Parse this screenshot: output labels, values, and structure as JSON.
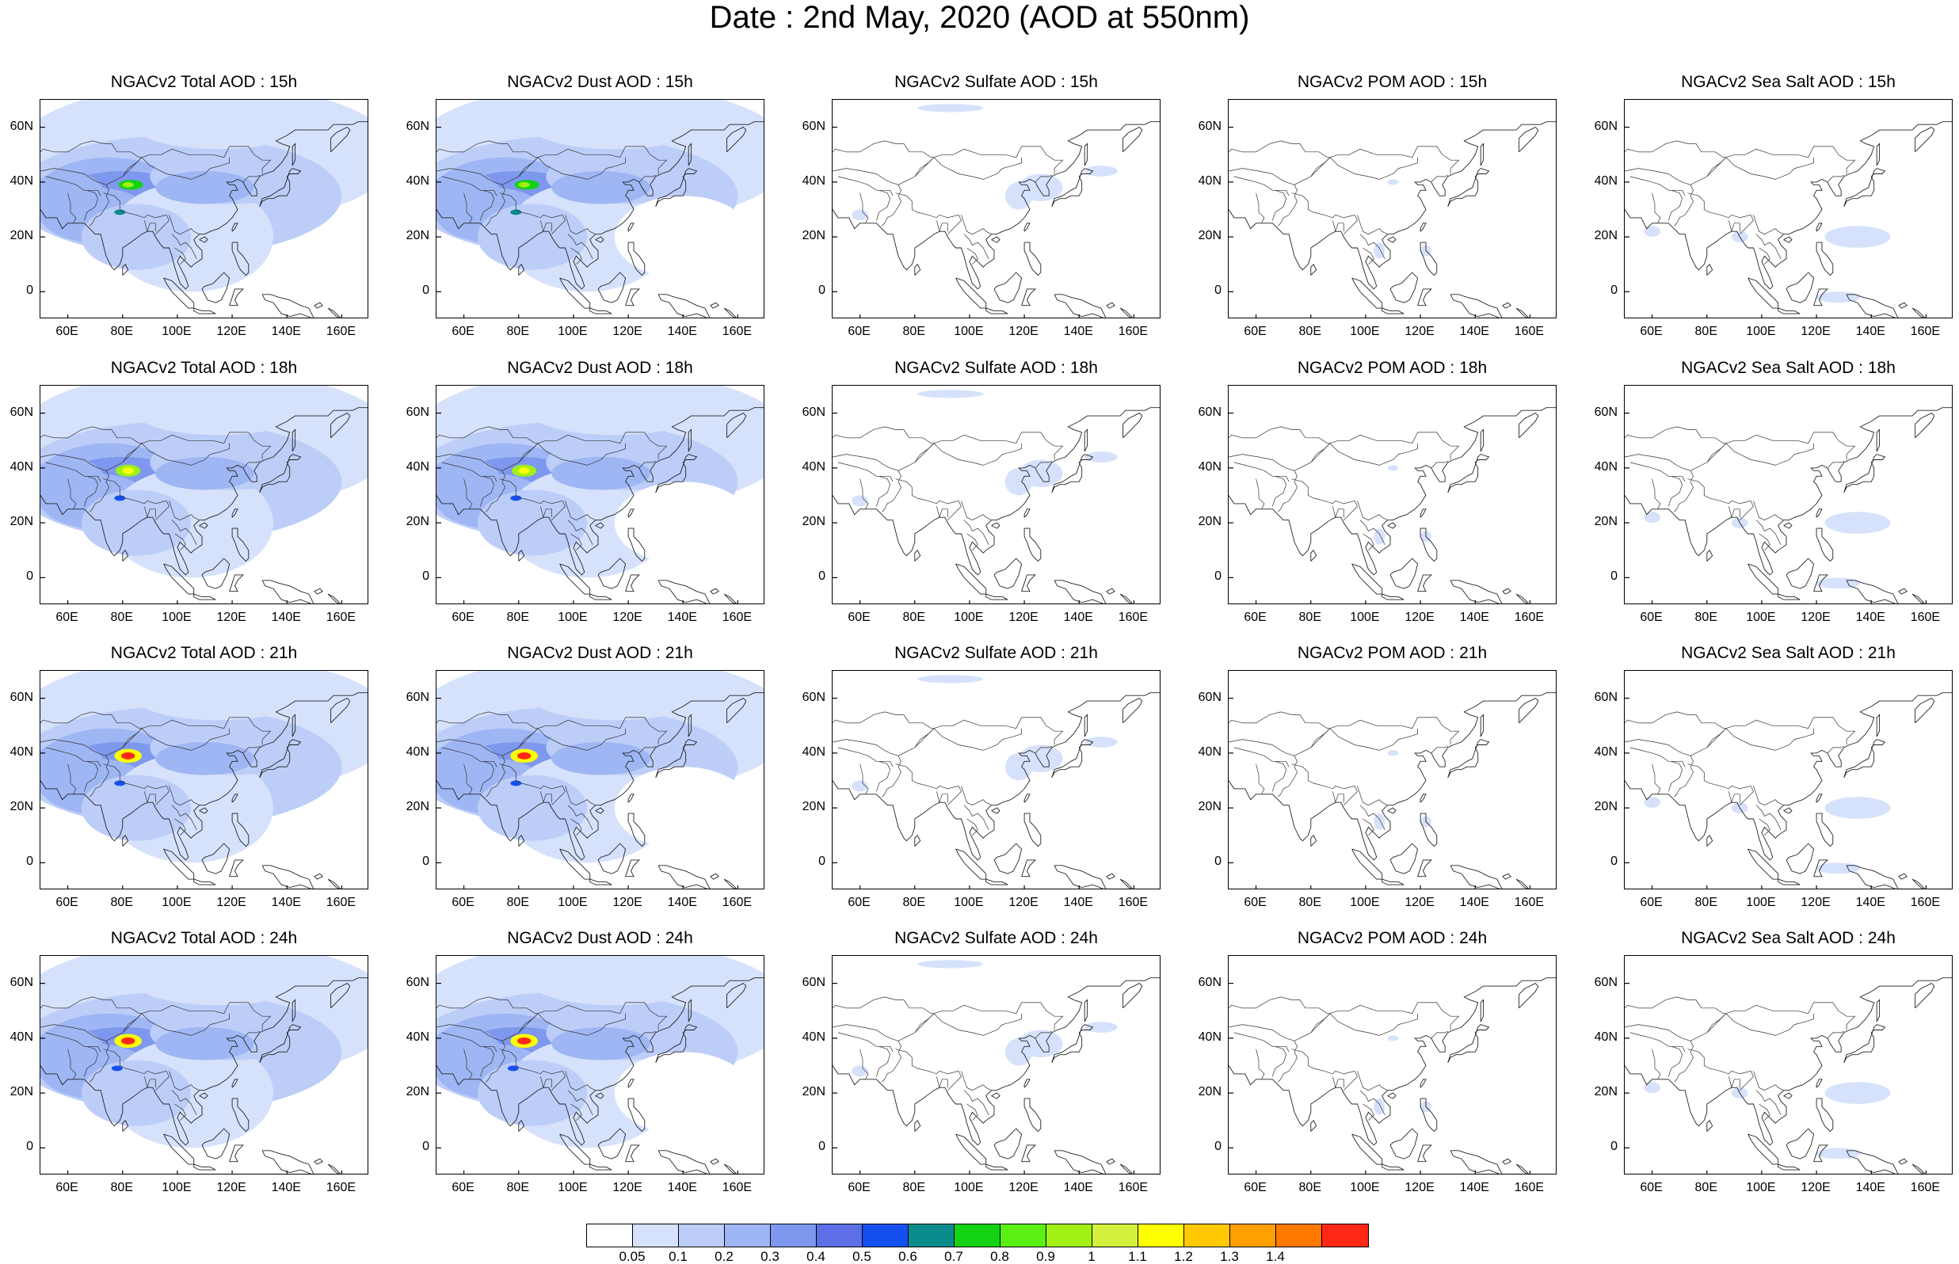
{
  "title": "Date : 2nd May, 2020 (AOD at 550nm)",
  "panel_titles": [
    [
      "NGACv2 Total AOD : 15h",
      "NGACv2 Dust AOD : 15h",
      "NGACv2 Sulfate AOD : 15h",
      "NGACv2 POM AOD : 15h",
      "NGACv2 Sea Salt AOD : 15h"
    ],
    [
      "NGACv2 Total AOD : 18h",
      "NGACv2 Dust AOD : 18h",
      "NGACv2 Sulfate AOD : 18h",
      "NGACv2 POM AOD : 18h",
      "NGACv2 Sea Salt AOD : 18h"
    ],
    [
      "NGACv2 Total AOD : 21h",
      "NGACv2 Dust AOD : 21h",
      "NGACv2 Sulfate AOD : 21h",
      "NGACv2 POM AOD : 21h",
      "NGACv2 Sea Salt AOD : 21h"
    ],
    [
      "NGACv2 Total AOD : 24h",
      "NGACv2 Dust AOD : 24h",
      "NGACv2 Sulfate AOD : 24h",
      "NGACv2 POM AOD : 24h",
      "NGACv2 Sea Salt  AOD : 24h"
    ]
  ],
  "panel_types": [
    "total",
    "dust",
    "sulfate",
    "pom",
    "seasalt"
  ],
  "hours": [
    "15h",
    "18h",
    "21h",
    "24h"
  ],
  "map_extent": {
    "lon_min": 50,
    "lon_max": 170,
    "lat_min": -10,
    "lat_max": 70
  },
  "lat_ticks": [
    {
      "value": 60,
      "label": "60N"
    },
    {
      "value": 40,
      "label": "40N"
    },
    {
      "value": 20,
      "label": "20N"
    },
    {
      "value": 0,
      "label": "0"
    }
  ],
  "lon_ticks": [
    {
      "value": 60,
      "label": "60E"
    },
    {
      "value": 80,
      "label": "80E"
    },
    {
      "value": 100,
      "label": "100E"
    },
    {
      "value": 120,
      "label": "120E"
    },
    {
      "value": 140,
      "label": "140E"
    },
    {
      "value": 160,
      "label": "160E"
    }
  ],
  "colorbar": {
    "colors": [
      "#ffffff",
      "#d6e2fb",
      "#bccdf8",
      "#9fb6f4",
      "#7d98ee",
      "#5c6fe6",
      "#1450f0",
      "#0a8c8c",
      "#14d214",
      "#5af014",
      "#a0f014",
      "#d2f03c",
      "#ffff00",
      "#ffc800",
      "#ffa000",
      "#ff7800",
      "#ff2814"
    ],
    "labels": [
      "0.05",
      "0.1",
      "0.2",
      "0.3",
      "0.4",
      "0.5",
      "0.6",
      "0.7",
      "0.8",
      "0.9",
      "1",
      "1.1",
      "1.2",
      "1.3",
      "1.4"
    ]
  }
}
